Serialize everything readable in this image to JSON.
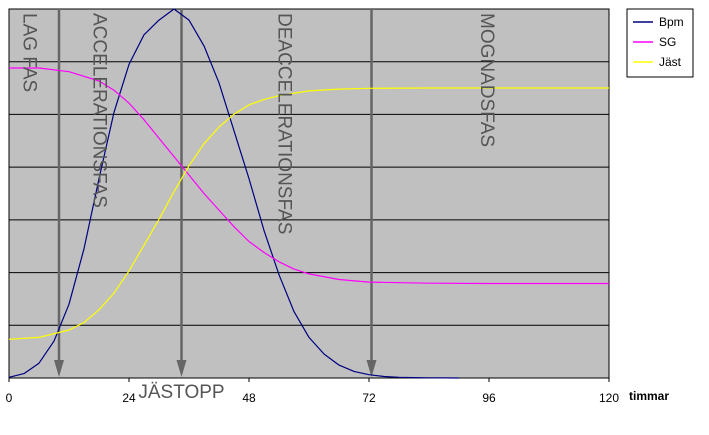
{
  "chart_data": {
    "type": "line",
    "xlabel": "timmar",
    "xlim": [
      0,
      120
    ],
    "xticks": [
      0,
      24,
      48,
      72,
      96,
      120
    ],
    "xtick_labels": [
      "0",
      "24",
      "48",
      "72",
      "96",
      "120"
    ],
    "grid": true,
    "legend_placement": "right",
    "plot_background": "#c0c0c0",
    "series": [
      {
        "name": "Bpm",
        "color": "#000080",
        "x": [
          0,
          3,
          6,
          9,
          12,
          15,
          18,
          21,
          24,
          27,
          30,
          33,
          36,
          39,
          42,
          45,
          48,
          51,
          54,
          57,
          60,
          63,
          66,
          69,
          72,
          75,
          78,
          81,
          84,
          87,
          90
        ],
        "y": [
          0.2,
          1.2,
          4,
          10,
          20,
          35,
          54,
          72,
          85,
          93,
          97,
          100,
          97,
          90,
          80,
          67,
          54,
          40,
          28,
          18,
          11,
          6.5,
          3.5,
          1.8,
          0.9,
          0.4,
          0.2,
          0.1,
          0.05,
          0.02,
          0
        ]
      },
      {
        "name": "SG",
        "color": "#ff00ff",
        "x": [
          0,
          6,
          12,
          18,
          21,
          24,
          27,
          30,
          33,
          36,
          39,
          42,
          45,
          48,
          51,
          54,
          57,
          60,
          66,
          72,
          84,
          96,
          108,
          120
        ],
        "y": [
          84,
          84,
          83,
          80.5,
          78,
          74.5,
          70,
          65,
          60,
          55,
          50,
          45.5,
          41,
          37,
          34,
          31.5,
          29.5,
          28.2,
          26.7,
          26,
          25.7,
          25.6,
          25.6,
          25.6
        ]
      },
      {
        "name": "Jäst",
        "color": "#ffff00",
        "x": [
          0,
          6,
          12,
          15,
          18,
          21,
          24,
          27,
          30,
          33,
          36,
          39,
          42,
          45,
          48,
          51,
          54,
          60,
          66,
          72,
          84,
          96,
          108,
          120
        ],
        "y": [
          10.5,
          11,
          13,
          15,
          18.5,
          23,
          29,
          36,
          43,
          50.5,
          57.5,
          63.5,
          68,
          71.5,
          74,
          75.5,
          76.5,
          77.8,
          78.3,
          78.5,
          78.6,
          78.6,
          78.6,
          78.6
        ]
      }
    ],
    "phase_markers": [
      {
        "x": 10,
        "color": "#666666"
      },
      {
        "x": 34.5,
        "color": "#666666"
      },
      {
        "x": 72.5,
        "color": "#666666"
      }
    ],
    "phase_labels": [
      {
        "text": "LAG FAS",
        "x": 4
      },
      {
        "text": "ACCELERATIONSFAS",
        "x": 18
      },
      {
        "text": "DEACCELERATIONSFAS",
        "x": 55
      },
      {
        "text": "MOGNADSFAS",
        "x": 95.5
      }
    ],
    "annotation": "JÄSTOPP"
  }
}
